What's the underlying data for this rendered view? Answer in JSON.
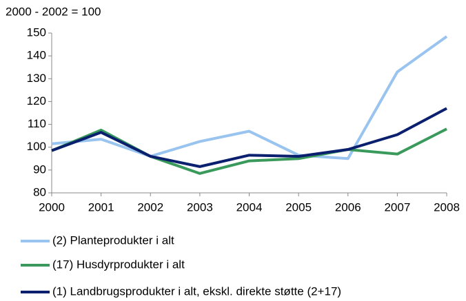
{
  "chart_data": {
    "type": "line",
    "y_axis_label": "2000 - 2002 = 100",
    "x": [
      2000,
      2001,
      2002,
      2003,
      2004,
      2005,
      2006,
      2007,
      2008
    ],
    "xlim": [
      2000,
      2008
    ],
    "xticks": [
      2000,
      2001,
      2002,
      2003,
      2004,
      2005,
      2006,
      2007,
      2008
    ],
    "ylim": [
      80,
      150
    ],
    "yticks": [
      80,
      90,
      100,
      110,
      120,
      130,
      140,
      150
    ],
    "grid": false,
    "legend": "bottom",
    "series": [
      {
        "name": "(2)  Planteprodukter i alt",
        "color": "#99c4f0",
        "values": [
          101.5,
          103.5,
          96,
          102.5,
          107,
          96.5,
          95,
          133,
          148.5
        ]
      },
      {
        "name": "(17) Husdyrprodukter i alt",
        "color": "#3a9a5b",
        "values": [
          98.5,
          107.5,
          96,
          88.5,
          94,
          95,
          99,
          97,
          108
        ]
      },
      {
        "name": "(1) Landbrugsprodukter i alt, ekskl. direkte støtte (2+17)",
        "color": "#0a1f6e",
        "values": [
          98.5,
          106.5,
          96,
          91.5,
          96.5,
          96,
          99,
          105.5,
          117
        ]
      }
    ]
  }
}
